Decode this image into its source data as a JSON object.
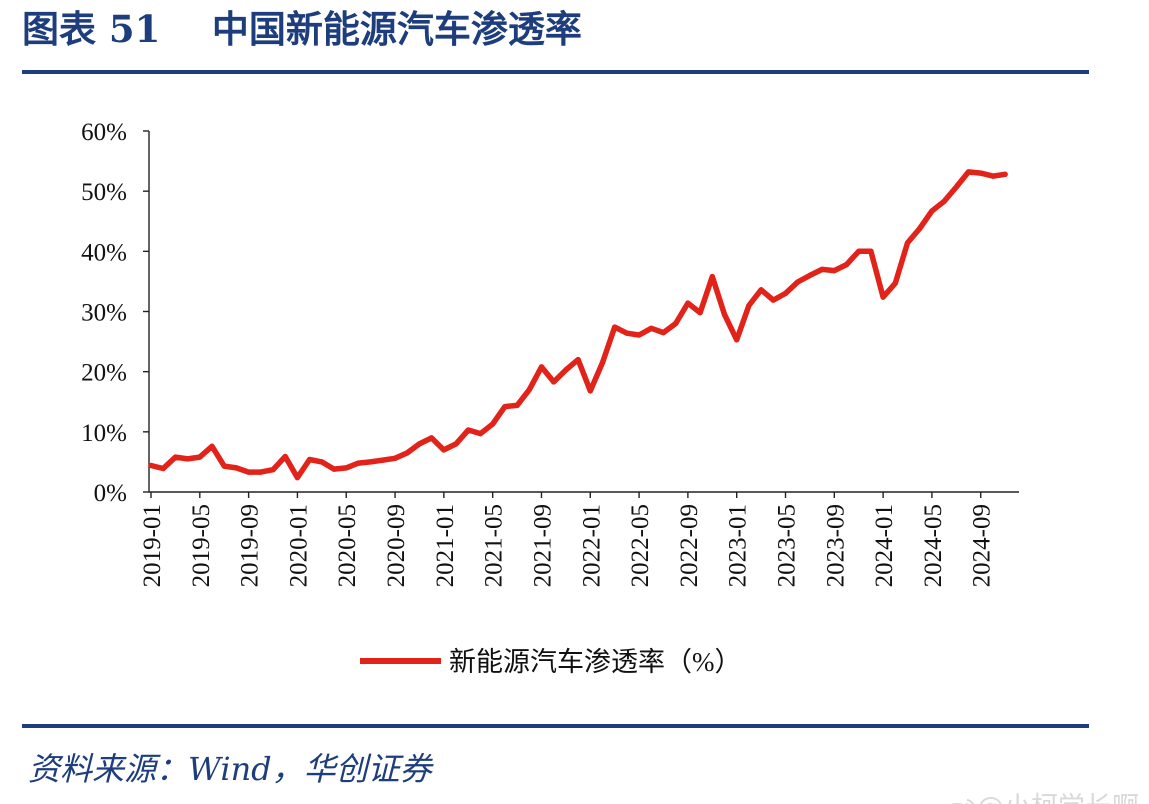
{
  "header": {
    "title": "图表 51    中国新能源汽车渗透率"
  },
  "footer": {
    "source": "资料来源：Wind，华创证券"
  },
  "watermark": {
    "text": "@小柯学长啊",
    "icon": "weibo-icon"
  },
  "chart_data": {
    "type": "line",
    "title": "",
    "xlabel": "",
    "ylabel": "",
    "ylim": [
      0,
      60
    ],
    "yticks": [
      "0%",
      "10%",
      "20%",
      "30%",
      "40%",
      "50%",
      "60%"
    ],
    "xtick_labels": [
      "2019-01",
      "2019-05",
      "2019-09",
      "2020-01",
      "2020-05",
      "2020-09",
      "2021-01",
      "2021-05",
      "2021-09",
      "2022-01",
      "2022-05",
      "2022-09",
      "2023-01",
      "2023-05",
      "2023-09",
      "2024-01",
      "2024-05",
      "2024-09"
    ],
    "grid": false,
    "legend_position": "bottom-center",
    "color": "#e2231a",
    "series": [
      {
        "name": "新能源汽车渗透率（%）",
        "x": [
          "2019-01",
          "2019-02",
          "2019-03",
          "2019-04",
          "2019-05",
          "2019-06",
          "2019-07",
          "2019-08",
          "2019-09",
          "2019-10",
          "2019-11",
          "2019-12",
          "2020-01",
          "2020-02",
          "2020-03",
          "2020-04",
          "2020-05",
          "2020-06",
          "2020-07",
          "2020-08",
          "2020-09",
          "2020-10",
          "2020-11",
          "2020-12",
          "2021-01",
          "2021-02",
          "2021-03",
          "2021-04",
          "2021-05",
          "2021-06",
          "2021-07",
          "2021-08",
          "2021-09",
          "2021-10",
          "2021-11",
          "2021-12",
          "2022-01",
          "2022-02",
          "2022-03",
          "2022-04",
          "2022-05",
          "2022-06",
          "2022-07",
          "2022-08",
          "2022-09",
          "2022-10",
          "2022-11",
          "2022-12",
          "2023-01",
          "2023-02",
          "2023-03",
          "2023-04",
          "2023-05",
          "2023-06",
          "2023-07",
          "2023-08",
          "2023-09",
          "2023-10",
          "2023-11",
          "2023-12",
          "2024-01",
          "2024-02",
          "2024-03",
          "2024-04",
          "2024-05",
          "2024-06",
          "2024-07",
          "2024-08",
          "2024-09",
          "2024-10",
          "2024-11"
        ],
        "values": [
          4.4,
          3.9,
          5.8,
          5.5,
          5.8,
          7.6,
          4.3,
          4.0,
          3.3,
          3.3,
          3.7,
          5.9,
          2.4,
          5.4,
          5.0,
          3.8,
          4.0,
          4.8,
          5.0,
          5.3,
          5.6,
          6.5,
          8.0,
          9.0,
          7.0,
          8.0,
          10.3,
          9.7,
          11.3,
          14.2,
          14.4,
          17.0,
          20.8,
          18.3,
          20.3,
          22.0,
          16.8,
          21.5,
          27.4,
          26.4,
          26.1,
          27.2,
          26.5,
          28.0,
          31.4,
          29.8,
          35.8,
          29.5,
          25.3,
          31.0,
          33.6,
          31.9,
          33.0,
          34.9,
          36.0,
          37.0,
          36.8,
          37.8,
          40.0,
          40.0,
          32.4,
          34.7,
          41.4,
          43.8,
          46.7,
          48.3,
          50.7,
          53.2,
          53.0,
          52.5,
          52.8
        ]
      }
    ]
  }
}
